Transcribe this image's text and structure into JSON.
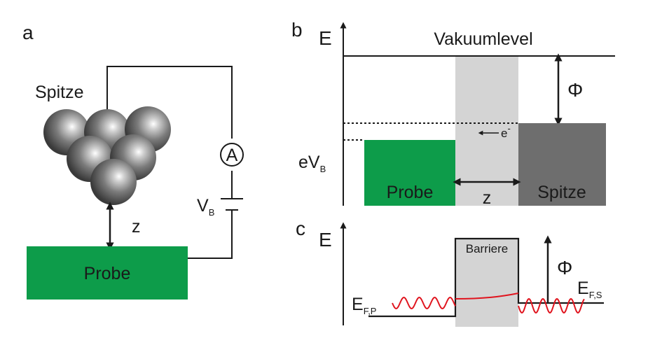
{
  "panels": {
    "a": {
      "letter": "a",
      "tip_label": "Spitze",
      "sample_label": "Probe",
      "gap_label": "z",
      "ammeter_symbol": "A",
      "bias_main": "V",
      "bias_sub": "B"
    },
    "b": {
      "letter": "b",
      "energy_axis": "E",
      "vacuum_label": "Vakuumlevel",
      "work_function": "Φ",
      "electron_main": "e",
      "electron_sup": "-",
      "bias_main": "eV",
      "bias_sub": "B",
      "sample_label": "Probe",
      "gap_label": "z",
      "tip_label": "Spitze"
    },
    "c": {
      "letter": "c",
      "energy_axis": "E",
      "barrier_label": "Barriere",
      "work_function": "Φ",
      "fermi_p_main": "E",
      "fermi_p_sub": "F,P",
      "fermi_s_main": "E",
      "fermi_s_sub": "F,S"
    }
  },
  "colors": {
    "sample_green": "#0d9c4a",
    "barrier_gray": "#d4d4d4",
    "tip_gray": "#6e6e6e",
    "wave_red": "#e0141e",
    "line": "#1a1a1a"
  }
}
